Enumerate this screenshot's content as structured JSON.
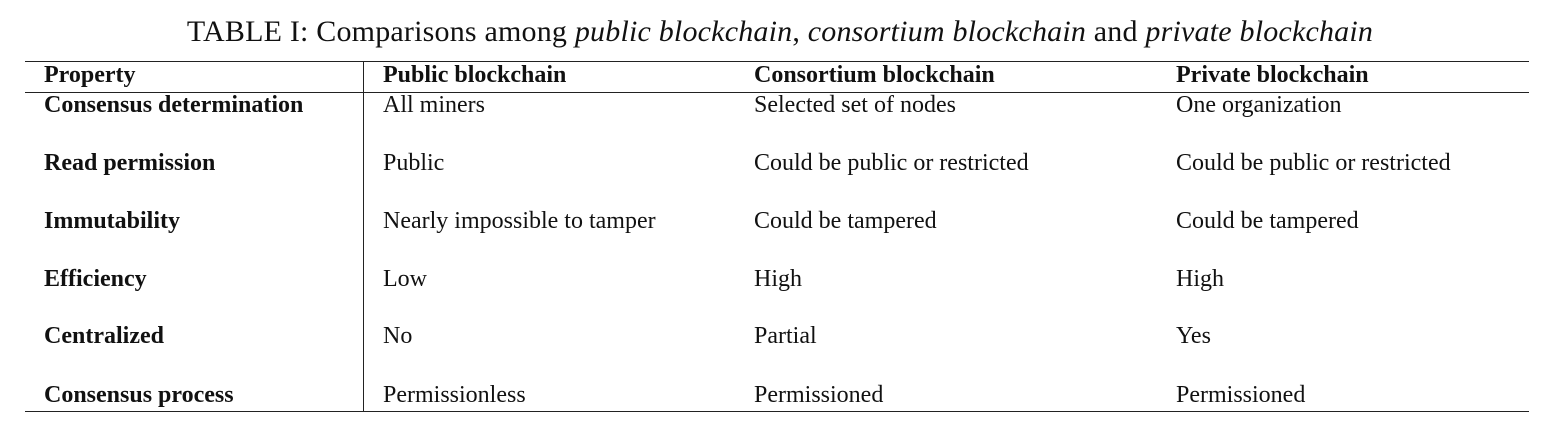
{
  "caption": {
    "label": "TABLE I: Comparisons among ",
    "public": "public blockchain",
    "sep1": ", ",
    "consortium": "consortium blockchain",
    "sep2": " and ",
    "private": "private blockchain"
  },
  "table": {
    "headers": [
      "Property",
      "Public blockchain",
      "Consortium blockchain",
      "Private blockchain"
    ],
    "rows": [
      [
        "Consensus determination",
        "All miners",
        "Selected set of nodes",
        "One organization"
      ],
      [
        "Read permission",
        "Public",
        "Could be public or restricted",
        "Could be public or restricted"
      ],
      [
        "Immutability",
        "Nearly impossible to tamper",
        "Could be tampered",
        "Could be tampered"
      ],
      [
        "Efficiency",
        "Low",
        "High",
        "High"
      ],
      [
        "Centralized",
        "No",
        "Partial",
        "Yes"
      ],
      [
        "Consensus process",
        "Permissionless",
        "Permissioned",
        "Permissioned"
      ]
    ]
  }
}
